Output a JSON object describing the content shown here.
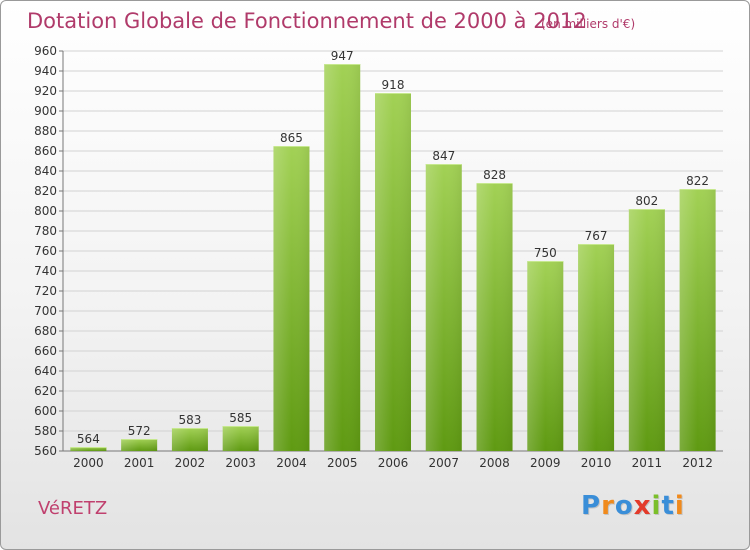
{
  "header": {
    "title": "Dotation Globale de Fonctionnement de 2000 à 2012",
    "subtitle": "(en milliers d'€)"
  },
  "footer": {
    "commune": "VéRETZ",
    "logo": "Proxiti"
  },
  "colors": {
    "bar_light": "#a2d155",
    "bar_dark": "#5f9a12",
    "title": "#b03a6a",
    "logo": [
      "#3a8ed8",
      "#f08a1c",
      "#3a8ed8",
      "#e33a2a",
      "#7bbf2a",
      "#3a8ed8",
      "#f08a1c"
    ]
  },
  "chart_data": {
    "type": "bar",
    "title": "Dotation Globale de Fonctionnement de 2000 à 2012",
    "subtitle": "(en milliers d'€)",
    "categories": [
      "2000",
      "2001",
      "2002",
      "2003",
      "2004",
      "2005",
      "2006",
      "2007",
      "2008",
      "2009",
      "2010",
      "2011",
      "2012"
    ],
    "values": [
      564,
      572,
      583,
      585,
      865,
      947,
      918,
      847,
      828,
      750,
      767,
      802,
      822
    ],
    "ylim": [
      560,
      960
    ],
    "ytick_step": 20,
    "grid": true,
    "legend": "none"
  }
}
